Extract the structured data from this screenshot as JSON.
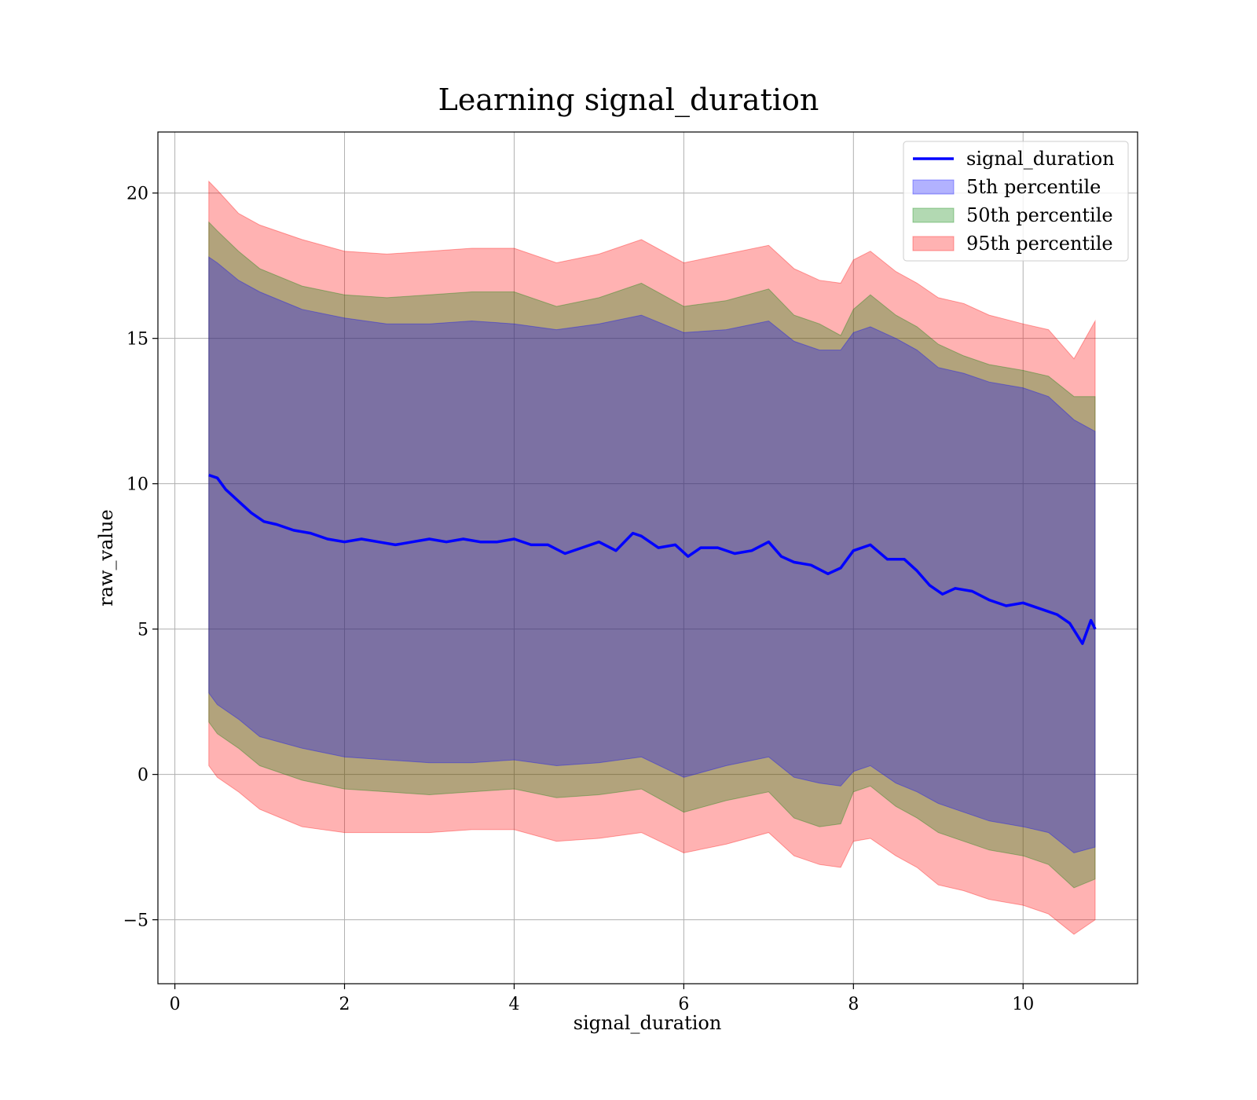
{
  "chart_data": {
    "type": "area",
    "title": "Learning signal_duration",
    "xlabel": "signal_duration",
    "ylabel": "raw_value",
    "xlim": [
      -0.2,
      11.35
    ],
    "ylim": [
      -7.2,
      22.1
    ],
    "xticks": [
      0,
      2,
      4,
      6,
      8,
      10
    ],
    "yticks": [
      -5,
      0,
      5,
      10,
      15,
      20
    ],
    "xtick_labels": [
      "0",
      "2",
      "4",
      "6",
      "8",
      "10"
    ],
    "ytick_labels": [
      "−5",
      "0",
      "5",
      "10",
      "15",
      "20"
    ],
    "grid": true,
    "legend": {
      "position": "top-right",
      "entries": [
        "signal_duration",
        "5th percentile",
        "50th percentile",
        "95th percentile"
      ]
    },
    "colors": {
      "line": "#0000ff",
      "band_5th": "#0000ff",
      "band_50th": "#008000",
      "band_95th": "#ff0000"
    },
    "series": [
      {
        "name": "signal_duration",
        "x": [
          0.4,
          0.5,
          0.6,
          0.75,
          0.9,
          1.05,
          1.2,
          1.4,
          1.6,
          1.8,
          2.0,
          2.2,
          2.4,
          2.6,
          2.8,
          3.0,
          3.2,
          3.4,
          3.6,
          3.8,
          4.0,
          4.2,
          4.4,
          4.6,
          4.8,
          5.0,
          5.2,
          5.4,
          5.5,
          5.7,
          5.9,
          6.05,
          6.2,
          6.4,
          6.6,
          6.8,
          7.0,
          7.15,
          7.3,
          7.5,
          7.7,
          7.85,
          8.0,
          8.2,
          8.4,
          8.6,
          8.75,
          8.9,
          9.05,
          9.2,
          9.4,
          9.6,
          9.8,
          10.0,
          10.2,
          10.4,
          10.55,
          10.7,
          10.8,
          10.85
        ],
        "values": [
          10.3,
          10.2,
          9.8,
          9.4,
          9.0,
          8.7,
          8.6,
          8.4,
          8.3,
          8.1,
          8.0,
          8.1,
          8.0,
          7.9,
          8.0,
          8.1,
          8.0,
          8.1,
          8.0,
          8.0,
          8.1,
          7.9,
          7.9,
          7.6,
          7.8,
          8.0,
          7.7,
          8.3,
          8.2,
          7.8,
          7.9,
          7.5,
          7.8,
          7.8,
          7.6,
          7.7,
          8.0,
          7.5,
          7.3,
          7.2,
          6.9,
          7.1,
          7.7,
          7.9,
          7.4,
          7.4,
          7.0,
          6.5,
          6.2,
          6.4,
          6.3,
          6.0,
          5.8,
          5.9,
          5.7,
          5.5,
          5.2,
          4.5,
          5.3,
          5.0
        ]
      },
      {
        "name": "5th percentile",
        "x": [
          0.4,
          0.5,
          0.75,
          1.0,
          1.5,
          2.0,
          2.5,
          3.0,
          3.5,
          4.0,
          4.5,
          5.0,
          5.5,
          6.0,
          6.5,
          7.0,
          7.3,
          7.6,
          7.85,
          8.0,
          8.2,
          8.5,
          8.75,
          9.0,
          9.3,
          9.6,
          10.0,
          10.3,
          10.6,
          10.85
        ],
        "upper": [
          17.8,
          17.6,
          17.0,
          16.6,
          16.0,
          15.7,
          15.5,
          15.5,
          15.6,
          15.5,
          15.3,
          15.5,
          15.8,
          15.2,
          15.3,
          15.6,
          14.9,
          14.6,
          14.6,
          15.2,
          15.4,
          15.0,
          14.6,
          14.0,
          13.8,
          13.5,
          13.3,
          13.0,
          12.2,
          11.8
        ],
        "lower": [
          2.8,
          2.4,
          1.9,
          1.3,
          0.9,
          0.6,
          0.5,
          0.4,
          0.4,
          0.5,
          0.3,
          0.4,
          0.6,
          -0.1,
          0.3,
          0.6,
          -0.1,
          -0.3,
          -0.4,
          0.1,
          0.3,
          -0.3,
          -0.6,
          -1.0,
          -1.3,
          -1.6,
          -1.8,
          -2.0,
          -2.7,
          -2.5
        ]
      },
      {
        "name": "50th percentile",
        "x": [
          0.4,
          0.5,
          0.75,
          1.0,
          1.5,
          2.0,
          2.5,
          3.0,
          3.5,
          4.0,
          4.5,
          5.0,
          5.5,
          6.0,
          6.5,
          7.0,
          7.3,
          7.6,
          7.85,
          8.0,
          8.2,
          8.5,
          8.75,
          9.0,
          9.3,
          9.6,
          10.0,
          10.3,
          10.6,
          10.85
        ],
        "upper": [
          19.0,
          18.7,
          18.0,
          17.4,
          16.8,
          16.5,
          16.4,
          16.5,
          16.6,
          16.6,
          16.1,
          16.4,
          16.9,
          16.1,
          16.3,
          16.7,
          15.8,
          15.5,
          15.1,
          16.0,
          16.5,
          15.8,
          15.4,
          14.8,
          14.4,
          14.1,
          13.9,
          13.7,
          13.0,
          13.0
        ],
        "lower": [
          1.8,
          1.4,
          0.9,
          0.3,
          -0.2,
          -0.5,
          -0.6,
          -0.7,
          -0.6,
          -0.5,
          -0.8,
          -0.7,
          -0.5,
          -1.3,
          -0.9,
          -0.6,
          -1.5,
          -1.8,
          -1.7,
          -0.6,
          -0.4,
          -1.1,
          -1.5,
          -2.0,
          -2.3,
          -2.6,
          -2.8,
          -3.1,
          -3.9,
          -3.6
        ]
      },
      {
        "name": "95th percentile",
        "x": [
          0.4,
          0.5,
          0.75,
          1.0,
          1.5,
          2.0,
          2.5,
          3.0,
          3.5,
          4.0,
          4.5,
          5.0,
          5.5,
          6.0,
          6.5,
          7.0,
          7.3,
          7.6,
          7.85,
          8.0,
          8.2,
          8.5,
          8.75,
          9.0,
          9.3,
          9.6,
          10.0,
          10.3,
          10.6,
          10.85
        ],
        "upper": [
          20.4,
          20.1,
          19.3,
          18.9,
          18.4,
          18.0,
          17.9,
          18.0,
          18.1,
          18.1,
          17.6,
          17.9,
          18.4,
          17.6,
          17.9,
          18.2,
          17.4,
          17.0,
          16.9,
          17.7,
          18.0,
          17.3,
          16.9,
          16.4,
          16.2,
          15.8,
          15.5,
          15.3,
          14.3,
          15.6
        ],
        "lower": [
          0.3,
          -0.1,
          -0.6,
          -1.2,
          -1.8,
          -2.0,
          -2.0,
          -2.0,
          -1.9,
          -1.9,
          -2.3,
          -2.2,
          -2.0,
          -2.7,
          -2.4,
          -2.0,
          -2.8,
          -3.1,
          -3.2,
          -2.3,
          -2.2,
          -2.8,
          -3.2,
          -3.8,
          -4.0,
          -4.3,
          -4.5,
          -4.8,
          -5.5,
          -5.0
        ]
      }
    ]
  }
}
